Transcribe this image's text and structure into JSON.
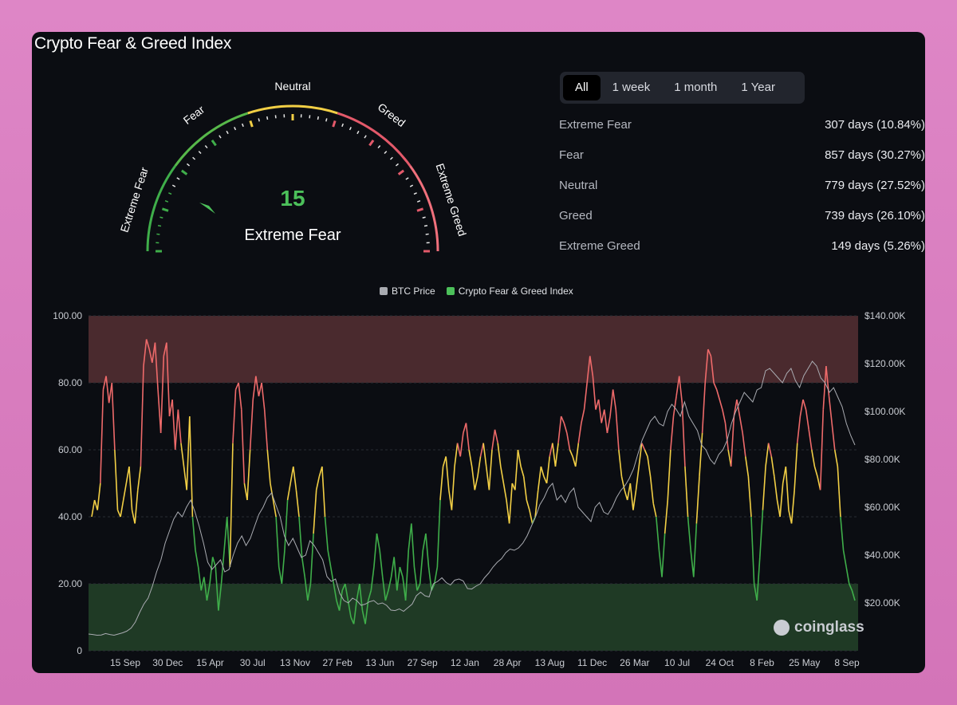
{
  "title": "Crypto Fear & Greed Index",
  "gauge": {
    "value": "15",
    "classification": "Extreme Fear",
    "value_color": "#4cc05a",
    "labels": {
      "extreme_fear": "Extreme Fear",
      "fear": "Fear",
      "neutral": "Neutral",
      "greed": "Greed",
      "extreme_greed": "Extreme Greed"
    }
  },
  "tabs": [
    {
      "label": "All",
      "active": true
    },
    {
      "label": "1 week",
      "active": false
    },
    {
      "label": "1 month",
      "active": false
    },
    {
      "label": "1 Year",
      "active": false
    }
  ],
  "stats": [
    {
      "label": "Extreme Fear",
      "value": "307 days (10.84%)"
    },
    {
      "label": "Fear",
      "value": "857 days (30.27%)"
    },
    {
      "label": "Neutral",
      "value": "779 days (27.52%)"
    },
    {
      "label": "Greed",
      "value": "739 days (26.10%)"
    },
    {
      "label": "Extreme Greed",
      "value": "149 days (5.26%)"
    }
  ],
  "legend": {
    "btc": "BTC Price",
    "fng": "Crypto Fear & Greed Index"
  },
  "colors": {
    "extreme_fear": "#3fae4a",
    "fear": "#3fae4a",
    "neutral": "#f2cf45",
    "greed": "#ee6a6a",
    "extreme_greed": "#ee6a6a",
    "btc": "#a9abb1",
    "band_greed": "#4a2a2e",
    "band_fear": "#1f3a25"
  },
  "watermark": "coinglass",
  "chart_data": {
    "type": "line",
    "x_tick_labels": [
      "15 Sep",
      "30 Dec",
      "15 Apr",
      "30 Jul",
      "13 Nov",
      "27 Feb",
      "13 Jun",
      "27 Sep",
      "12 Jan",
      "28 Apr",
      "13 Aug",
      "11 Dec",
      "26 Mar",
      "10 Jul",
      "24 Oct",
      "8 Feb",
      "25 May",
      "8 Sep"
    ],
    "left_axis": {
      "ticks": [
        "0",
        "20.00",
        "40.00",
        "60.00",
        "80.00",
        "100.00"
      ],
      "range": [
        0,
        100
      ]
    },
    "right_axis": {
      "ticks": [
        "$20.00K",
        "$40.00K",
        "$60.00K",
        "$80.00K",
        "$100.00K",
        "$120.00K",
        "$140.00K"
      ],
      "range": [
        0,
        140000
      ]
    },
    "bands": [
      {
        "from": 80,
        "to": 100,
        "zone": "greed"
      },
      {
        "from": 0,
        "to": 20,
        "zone": "fear"
      }
    ],
    "series": [
      {
        "name": "Crypto Fear & Greed Index",
        "axis": "left",
        "values": [
          40,
          45,
          42,
          50,
          78,
          82,
          74,
          80,
          60,
          42,
          40,
          45,
          50,
          55,
          42,
          38,
          48,
          55,
          85,
          93,
          90,
          86,
          92,
          78,
          65,
          88,
          92,
          70,
          75,
          60,
          72,
          62,
          55,
          48,
          70,
          40,
          30,
          25,
          18,
          22,
          15,
          20,
          28,
          25,
          12,
          20,
          30,
          40,
          25,
          62,
          78,
          80,
          72,
          50,
          45,
          60,
          75,
          82,
          76,
          80,
          72,
          60,
          50,
          45,
          40,
          25,
          20,
          30,
          45,
          50,
          55,
          48,
          40,
          28,
          22,
          15,
          20,
          35,
          48,
          52,
          55,
          40,
          30,
          25,
          20,
          15,
          12,
          18,
          20,
          15,
          10,
          8,
          15,
          20,
          12,
          8,
          15,
          18,
          25,
          35,
          30,
          22,
          15,
          18,
          22,
          28,
          18,
          25,
          22,
          15,
          30,
          38,
          25,
          18,
          20,
          30,
          35,
          25,
          18,
          20,
          25,
          45,
          55,
          58,
          48,
          42,
          55,
          62,
          58,
          65,
          68,
          60,
          55,
          48,
          52,
          58,
          62,
          55,
          48,
          60,
          66,
          62,
          55,
          50,
          45,
          38,
          50,
          48,
          60,
          55,
          52,
          45,
          42,
          38,
          40,
          48,
          55,
          52,
          50,
          58,
          62,
          55,
          62,
          70,
          68,
          65,
          60,
          58,
          55,
          62,
          68,
          72,
          80,
          88,
          82,
          72,
          75,
          68,
          72,
          65,
          70,
          78,
          72,
          60,
          52,
          48,
          45,
          50,
          42,
          48,
          55,
          62,
          60,
          58,
          52,
          44,
          40,
          30,
          22,
          35,
          45,
          60,
          70,
          76,
          82,
          74,
          55,
          40,
          30,
          22,
          38,
          52,
          65,
          80,
          90,
          88,
          80,
          78,
          75,
          72,
          68,
          60,
          55,
          70,
          75,
          70,
          65,
          58,
          52,
          40,
          20,
          15,
          28,
          42,
          55,
          62,
          58,
          52,
          45,
          40,
          50,
          55,
          42,
          38,
          48,
          62,
          70,
          75,
          72,
          66,
          60,
          55,
          52,
          48,
          72,
          85,
          76,
          68,
          60,
          55,
          40,
          30,
          25,
          20,
          18,
          15
        ],
        "color_by_zone": true
      },
      {
        "name": "BTC Price",
        "axis": "right",
        "values": [
          7000,
          6800,
          6500,
          6600,
          7200,
          6800,
          6500,
          7000,
          7500,
          8200,
          9500,
          12000,
          16000,
          19500,
          22000,
          27000,
          33000,
          38000,
          45000,
          50000,
          55000,
          58000,
          56000,
          60000,
          63000,
          58000,
          52000,
          45000,
          37000,
          34000,
          36000,
          38000,
          33000,
          34000,
          40000,
          45000,
          48000,
          44000,
          47000,
          52000,
          57000,
          60000,
          64000,
          66000,
          61000,
          56000,
          48000,
          44000,
          47000,
          43000,
          39000,
          40000,
          46000,
          44000,
          41000,
          38000,
          31000,
          29000,
          30000,
          24000,
          21000,
          20000,
          22000,
          21000,
          19000,
          19500,
          20500,
          21000,
          19500,
          20000,
          19000,
          17000,
          16800,
          17500,
          16500,
          18000,
          19500,
          23000,
          24500,
          23000,
          22500,
          28000,
          29000,
          30500,
          28500,
          27500,
          29500,
          30000,
          29200,
          26000,
          25800,
          27000,
          28000,
          30500,
          32500,
          35000,
          37000,
          38500,
          41000,
          42500,
          42000,
          43000,
          45000,
          48000,
          52000,
          56000,
          61000,
          64000,
          68000,
          70000,
          63000,
          65000,
          62000,
          66000,
          68000,
          60000,
          58000,
          56000,
          54000,
          60000,
          62000,
          58000,
          57000,
          60000,
          64000,
          67000,
          69000,
          72000,
          76000,
          82000,
          88000,
          92000,
          96000,
          98000,
          95000,
          94000,
          100000,
          103000,
          101000,
          98000,
          104000,
          98000,
          95000,
          92000,
          86000,
          84000,
          80000,
          78000,
          82000,
          84000,
          88000,
          95000,
          100000,
          104000,
          108000,
          106000,
          104000,
          109000,
          110000,
          117000,
          118000,
          116000,
          114000,
          112000,
          116000,
          118000,
          113000,
          110000,
          115000,
          118000,
          121000,
          119000,
          114000,
          112000,
          108000,
          110000,
          106000,
          102000,
          95000,
          90000,
          86000
        ]
      }
    ]
  }
}
